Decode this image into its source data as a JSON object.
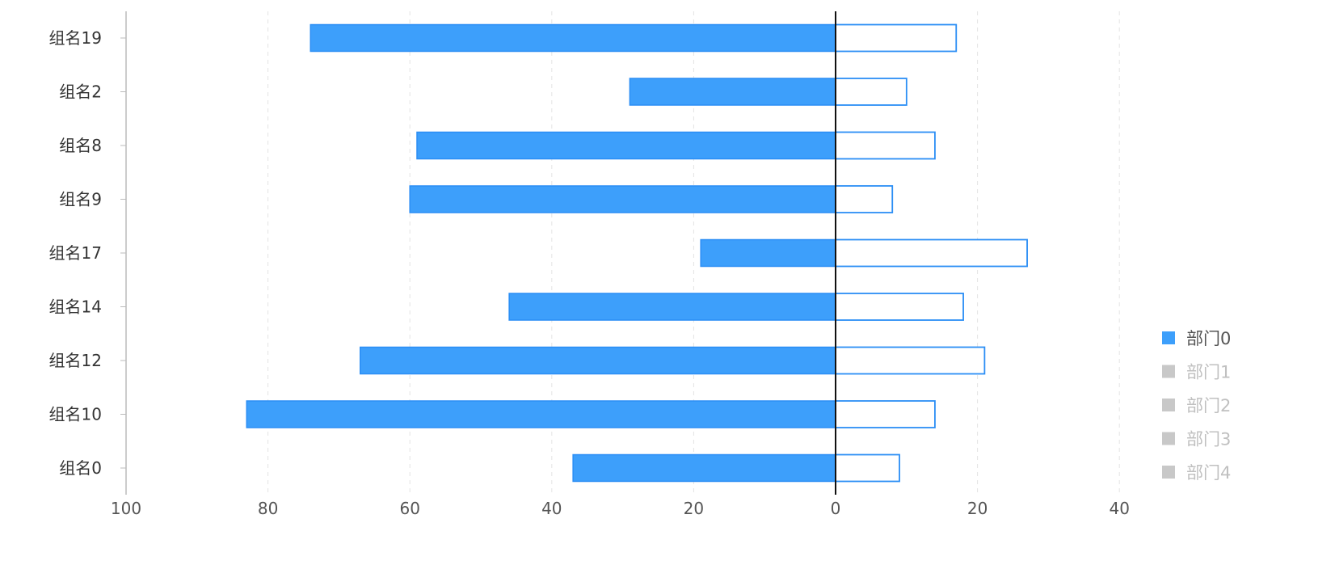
{
  "chart_data": {
    "type": "bar",
    "orientation": "horizontal",
    "categories": [
      "组名19",
      "组名2",
      "组名8",
      "组名9",
      "组名17",
      "组名14",
      "组名12",
      "组名10",
      "组名0"
    ],
    "series": [
      {
        "name": "部门0",
        "side": "left",
        "values": [
          74,
          29,
          59,
          60,
          19,
          46,
          67,
          83,
          37
        ]
      },
      {
        "side": "right",
        "values": [
          17,
          10,
          14,
          8,
          27,
          18,
          21,
          14,
          9
        ]
      }
    ],
    "x_ticks": [
      "100",
      "80",
      "60",
      "40",
      "20",
      "0",
      "20",
      "40"
    ],
    "xlim_left": [
      0,
      100
    ],
    "xlim_right": [
      0,
      40
    ],
    "grid": "vertical dashed",
    "legend": {
      "position": "right",
      "items": [
        {
          "label": "部门0",
          "active": true
        },
        {
          "label": "部门1",
          "active": false
        },
        {
          "label": "部门2",
          "active": false
        },
        {
          "label": "部门3",
          "active": false
        },
        {
          "label": "部门4",
          "active": false
        }
      ]
    },
    "colors": {
      "bar": "#3d9ffb",
      "bar_stroke": "#2b8ef5",
      "inactive": "#c8c8c8",
      "axis": "#bbbbbb",
      "center_line": "#111111"
    }
  }
}
